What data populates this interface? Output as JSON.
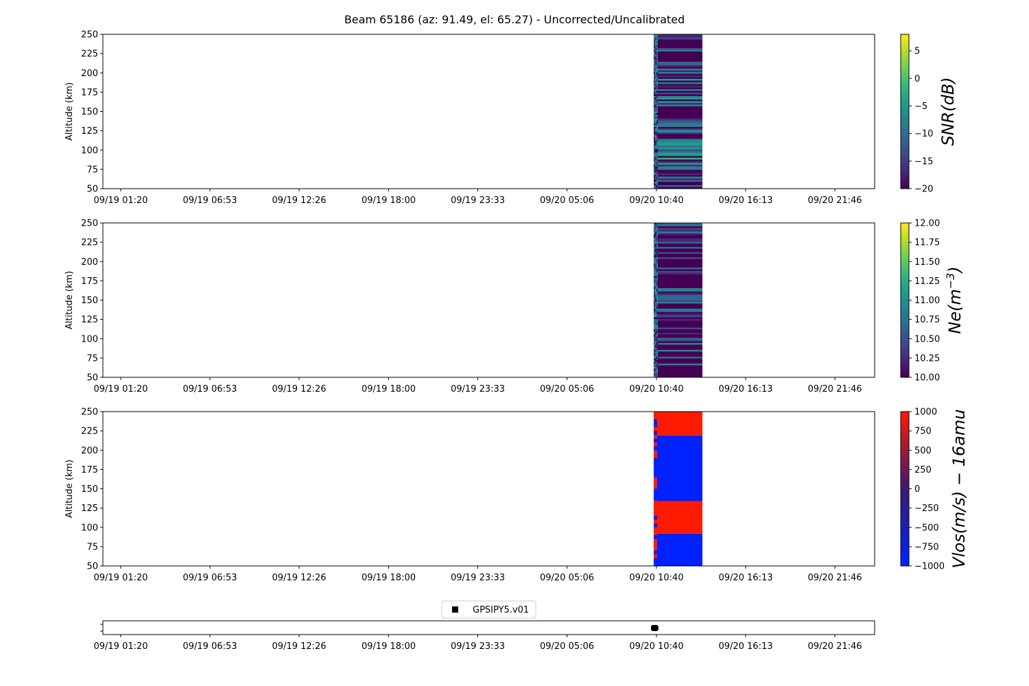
{
  "title": "Beam 65186 (az: 91.49, el: 65.27) - Uncorrected/Uncalibrated",
  "colors": {
    "viridis": [
      "#440154",
      "#482878",
      "#3e4a89",
      "#31688e",
      "#26828e",
      "#1f9e89",
      "#35b779",
      "#6ece58",
      "#b5de2b",
      "#fde725"
    ],
    "bwr_low": "#0022ff",
    "bwr_mid": "#3a1a70",
    "bwr_high": "#ff1a00",
    "marker": "#000000"
  },
  "chart_data": [
    {
      "type": "heatmap",
      "name": "snr",
      "ylabel": "Altitude (km)",
      "ylim": [
        50,
        250
      ],
      "yticks": [
        "50",
        "75",
        "100",
        "125",
        "150",
        "175",
        "200",
        "225",
        "250"
      ],
      "xticks": [
        "09/19 01:20",
        "09/19 06:53",
        "09/19 12:26",
        "09/19 18:00",
        "09/19 23:33",
        "09/20 05:06",
        "09/20 10:40",
        "09/20 16:13",
        "09/20 21:46"
      ],
      "data_window": [
        "09/20 10:40",
        "09/20 12:30"
      ],
      "colormap": "viridis",
      "colorbar_label": "SNR(dB)",
      "colorbar_ticks": [
        "5",
        "0",
        "−5",
        "−10",
        "−15",
        "−20"
      ],
      "clim": [
        -20,
        8
      ]
    },
    {
      "type": "heatmap",
      "name": "ne",
      "ylabel": "Altitude (km)",
      "ylim": [
        50,
        250
      ],
      "yticks": [
        "50",
        "75",
        "100",
        "125",
        "150",
        "175",
        "200",
        "225",
        "250"
      ],
      "xticks": [
        "09/19 01:20",
        "09/19 06:53",
        "09/19 12:26",
        "09/19 18:00",
        "09/19 23:33",
        "09/20 05:06",
        "09/20 10:40",
        "09/20 16:13",
        "09/20 21:46"
      ],
      "data_window": [
        "09/20 10:40",
        "09/20 12:30"
      ],
      "colormap": "viridis",
      "colorbar_label_base": "Ne(m",
      "colorbar_label_exp": "−3",
      "colorbar_label_close": ")",
      "colorbar_ticks": [
        "12.00",
        "11.75",
        "11.50",
        "11.25",
        "11.00",
        "10.75",
        "10.50",
        "10.25",
        "10.00"
      ],
      "clim": [
        10,
        12
      ]
    },
    {
      "type": "heatmap",
      "name": "vlos",
      "ylabel": "Altitude (km)",
      "ylim": [
        50,
        250
      ],
      "yticks": [
        "50",
        "75",
        "100",
        "125",
        "150",
        "175",
        "200",
        "225",
        "250"
      ],
      "xticks": [
        "09/19 01:20",
        "09/19 06:53",
        "09/19 12:26",
        "09/19 18:00",
        "09/19 23:33",
        "09/20 05:06",
        "09/20 10:40",
        "09/20 16:13",
        "09/20 21:46"
      ],
      "data_window": [
        "09/20 10:40",
        "09/20 12:30"
      ],
      "colormap": "bwr",
      "colorbar_label": "Vlos(m/s) − 16amu",
      "colorbar_ticks": [
        "1000",
        "750",
        "500",
        "250",
        "0",
        "−250",
        "−500",
        "−750",
        "−1000"
      ],
      "clim": [
        -1000,
        1000
      ],
      "bands": [
        {
          "from": 50,
          "to": 92,
          "value": -1000
        },
        {
          "from": 92,
          "to": 134,
          "value": 1000
        },
        {
          "from": 134,
          "to": 219,
          "value": -1000
        },
        {
          "from": 219,
          "to": 250,
          "value": 1000
        }
      ]
    },
    {
      "type": "scatter",
      "name": "coverage",
      "xticks": [
        "09/19 01:20",
        "09/19 06:53",
        "09/19 12:26",
        "09/19 18:00",
        "09/19 23:33",
        "09/20 05:06",
        "09/20 10:40",
        "09/20 16:13",
        "09/20 21:46"
      ],
      "legend": "GPSIPY5.v01",
      "legend_position": "top-center",
      "x": [
        "09/20 10:40",
        "09/20 11:00"
      ]
    }
  ]
}
